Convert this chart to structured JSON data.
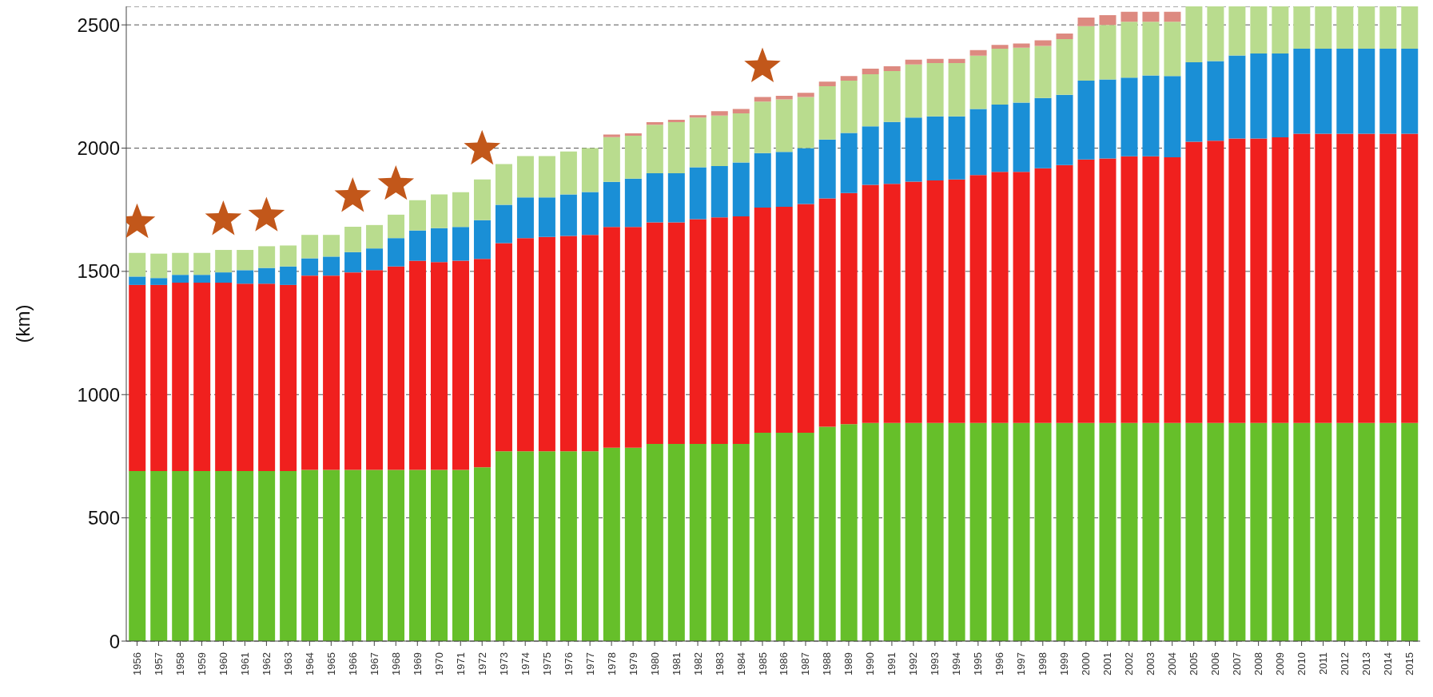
{
  "chart_data": {
    "type": "bar",
    "ylabel": "(km)",
    "stacked": true,
    "grid": "y",
    "categories": [
      "1956",
      "1957",
      "1958",
      "1959",
      "1960",
      "1961",
      "1962",
      "1963",
      "1964",
      "1965",
      "1966",
      "1967",
      "1968",
      "1969",
      "1970",
      "1971",
      "1972",
      "1973",
      "1974",
      "1975",
      "1976",
      "1977",
      "1978",
      "1979",
      "1980",
      "1981",
      "1982",
      "1983",
      "1984",
      "1985",
      "1986",
      "1987",
      "1988",
      "1989",
      "1990",
      "1991",
      "1992",
      "1993",
      "1994",
      "1995",
      "1996",
      "1997",
      "1998",
      "1999",
      "2000",
      "2001",
      "2002",
      "2003",
      "2004",
      "2005",
      "2006",
      "2007",
      "2008",
      "2009",
      "2010",
      "2011",
      "2012",
      "2013",
      "2014",
      "2015"
    ],
    "series": [
      {
        "color": "#66bf2a",
        "values": [
          690,
          690,
          690,
          690,
          690,
          690,
          690,
          690,
          695,
          695,
          695,
          695,
          695,
          695,
          695,
          695,
          705,
          770,
          770,
          770,
          770,
          770,
          785,
          785,
          800,
          800,
          800,
          800,
          800,
          845,
          845,
          845,
          870,
          880,
          885,
          885,
          885,
          885,
          885,
          885,
          885,
          885,
          885,
          885,
          885,
          885,
          885,
          885,
          885,
          885,
          885,
          885,
          885,
          885,
          885,
          885,
          885,
          885,
          885,
          885
        ]
      },
      {
        "color": "#f0201e",
        "values": [
          755,
          755,
          764,
          764,
          764,
          760,
          760,
          755,
          788,
          788,
          801,
          810,
          825,
          848,
          843,
          848,
          846,
          845,
          865,
          870,
          874,
          878,
          895,
          895,
          899,
          899,
          912,
          919,
          923,
          914,
          917,
          928,
          926,
          938,
          966,
          970,
          979,
          984,
          988,
          1006,
          1019,
          1019,
          1033,
          1046,
          1069,
          1073,
          1082,
          1082,
          1078,
          1141,
          1145,
          1154,
          1154,
          1159,
          1173,
          1173,
          1173,
          1173,
          1173,
          1173
        ]
      },
      {
        "color": "#1a8fd6",
        "values": [
          34,
          28,
          32,
          32,
          42,
          55,
          64,
          75,
          70,
          77,
          82,
          88,
          115,
          123,
          137,
          137,
          157,
          155,
          165,
          160,
          168,
          174,
          183,
          196,
          199,
          199,
          210,
          208,
          219,
          221,
          223,
          227,
          239,
          244,
          237,
          251,
          260,
          260,
          256,
          268,
          273,
          281,
          285,
          285,
          320,
          321,
          319,
          328,
          329,
          322,
          323,
          337,
          345,
          340,
          345,
          345,
          345,
          345,
          345,
          345
        ]
      },
      {
        "color": "#b9dc8e",
        "values": [
          96,
          99,
          89,
          89,
          91,
          82,
          88,
          85,
          95,
          88,
          103,
          95,
          95,
          123,
          137,
          141,
          165,
          165,
          168,
          168,
          174,
          178,
          182,
          174,
          197,
          207,
          202,
          205,
          199,
          209,
          213,
          207,
          216,
          212,
          212,
          207,
          215,
          216,
          216,
          216,
          226,
          222,
          212,
          226,
          221,
          221,
          227,
          218,
          221,
          227,
          222,
          199,
          191,
          191,
          172,
          172,
          172,
          172,
          172,
          172
        ]
      },
      {
        "color": "#dd8a80",
        "values": [
          null,
          null,
          null,
          null,
          null,
          null,
          null,
          null,
          null,
          null,
          null,
          null,
          null,
          null,
          null,
          null,
          null,
          null,
          null,
          null,
          null,
          null,
          10,
          10,
          10,
          10,
          10,
          18,
          18,
          18,
          14,
          17,
          19,
          18,
          22,
          19,
          20,
          17,
          17,
          23,
          16,
          17,
          22,
          23,
          35,
          39,
          40,
          40,
          40,
          null,
          null,
          null,
          null,
          null,
          null,
          null,
          null,
          null,
          null,
          null
        ]
      }
    ],
    "ylim": [
      0,
      2575
    ],
    "yticks": [
      0,
      500,
      1000,
      1500,
      2000,
      2500
    ]
  }
}
